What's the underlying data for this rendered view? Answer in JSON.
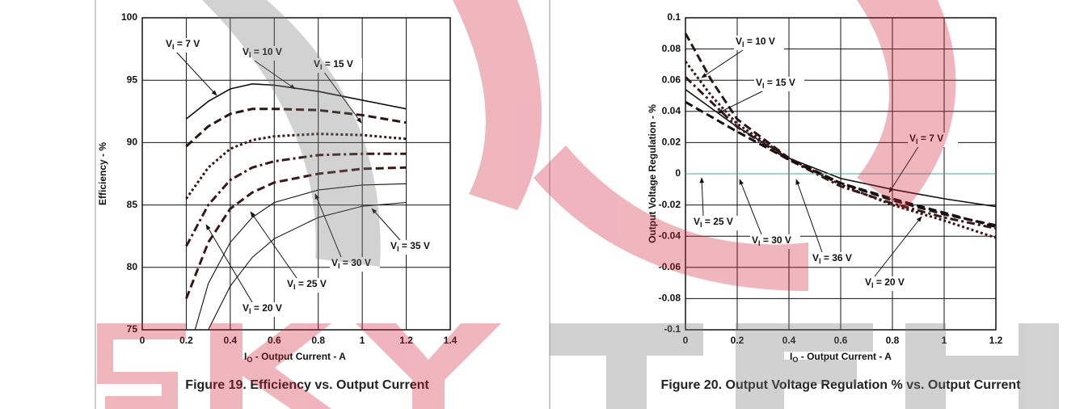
{
  "chart_data": [
    {
      "type": "line",
      "caption": "Figure 19. Efficiency vs. Output Current",
      "xlabel": "IO - Output Current - A",
      "ylabel": "Efficiency - %",
      "xlim": [
        0,
        1.4
      ],
      "xticks": [
        0,
        0.2,
        0.4,
        0.6,
        0.8,
        1,
        1.2,
        1.4
      ],
      "ylim": [
        75,
        100
      ],
      "yticks": [
        75,
        80,
        85,
        90,
        95,
        100
      ],
      "grid": true,
      "series": [
        {
          "name": "VI = 7 V",
          "color": "#111111",
          "style": "solid",
          "x": [
            0.2,
            0.3,
            0.4,
            0.5,
            0.6,
            0.8,
            1.0,
            1.2
          ],
          "values": [
            91.9,
            93.3,
            94.3,
            94.7,
            94.6,
            94.1,
            93.4,
            92.7
          ]
        },
        {
          "name": "VI = 10 V",
          "color": "#2a1414",
          "style": "dashed",
          "x": [
            0.2,
            0.3,
            0.4,
            0.5,
            0.6,
            0.8,
            1.0,
            1.2
          ],
          "values": [
            89.7,
            91.3,
            92.3,
            92.7,
            92.7,
            92.6,
            92.2,
            91.6
          ]
        },
        {
          "name": "VI = 15 V",
          "color": "#3a1818",
          "style": "dotted",
          "x": [
            0.2,
            0.3,
            0.4,
            0.5,
            0.6,
            0.8,
            1.0,
            1.2
          ],
          "values": [
            85.5,
            88.0,
            89.5,
            90.2,
            90.5,
            90.7,
            90.6,
            90.3
          ]
        },
        {
          "name": "VI = 20 V",
          "color": "#3a1818",
          "style": "dashdot",
          "x": [
            0.2,
            0.3,
            0.4,
            0.5,
            0.6,
            0.8,
            1.0,
            1.2
          ],
          "values": [
            81.7,
            85.0,
            87.0,
            88.0,
            88.5,
            89.0,
            89.1,
            89.1
          ]
        },
        {
          "name": "VI = 25 V",
          "color": "#3a1818",
          "style": "dashed",
          "x": [
            0.2,
            0.3,
            0.4,
            0.5,
            0.6,
            0.8,
            1.0,
            1.2
          ],
          "values": [
            77.5,
            82.0,
            84.7,
            86.0,
            86.8,
            87.5,
            87.9,
            88.0
          ]
        },
        {
          "name": "VI = 30 V",
          "color": "#111111",
          "style": "thin",
          "x": [
            0.24,
            0.3,
            0.4,
            0.5,
            0.6,
            0.8,
            1.0,
            1.2
          ],
          "values": [
            75.0,
            78.7,
            82.0,
            84.0,
            85.2,
            86.2,
            86.6,
            86.7
          ]
        },
        {
          "name": "VI = 35 V",
          "color": "#111111",
          "style": "thin",
          "x": [
            0.3,
            0.4,
            0.5,
            0.6,
            0.8,
            1.0,
            1.2
          ],
          "values": [
            75.0,
            78.5,
            80.8,
            82.3,
            84.0,
            84.9,
            85.2
          ]
        }
      ]
    },
    {
      "type": "line",
      "caption": "Figure 20. Output Voltage Regulation % vs. Output Current",
      "xlabel": "IO - Output Current - A",
      "ylabel": "Output Voltage Regulation - %",
      "xlim": [
        0,
        1.2
      ],
      "xticks": [
        0,
        0.2,
        0.4,
        0.6,
        0.8,
        1,
        1.2
      ],
      "ylim": [
        -0.1,
        0.1
      ],
      "yticks": [
        -0.1,
        -0.08,
        -0.06,
        -0.04,
        -0.02,
        0,
        0.02,
        0.04,
        0.06,
        0.08,
        0.1
      ],
      "grid": true,
      "series": [
        {
          "name": "VI = 7 V",
          "color": "#111111",
          "style": "solid",
          "x": [
            0,
            0.2,
            0.4,
            0.6,
            0.8,
            1.0,
            1.2
          ],
          "values": [
            0.054,
            0.03,
            0.01,
            -0.003,
            -0.01,
            -0.016,
            -0.021
          ]
        },
        {
          "name": "VI = 10 V",
          "color": "#2a1414",
          "style": "dashed",
          "x": [
            0,
            0.1,
            0.2,
            0.4,
            0.6,
            0.8,
            1.0,
            1.2
          ],
          "values": [
            0.09,
            0.06,
            0.035,
            0.01,
            -0.006,
            -0.017,
            -0.026,
            -0.033
          ]
        },
        {
          "name": "VI = 15 V",
          "color": "#3a1818",
          "style": "dotted",
          "x": [
            0,
            0.1,
            0.2,
            0.4,
            0.6,
            0.8,
            1.0,
            1.2
          ],
          "values": [
            0.072,
            0.05,
            0.032,
            0.01,
            -0.007,
            -0.02,
            -0.03,
            -0.041
          ]
        },
        {
          "name": "VI = 20 V",
          "color": "#3a1818",
          "style": "dashdot",
          "x": [
            0,
            0.2,
            0.4,
            0.6,
            0.8,
            1.0,
            1.2
          ],
          "values": [
            0.062,
            0.03,
            0.009,
            -0.008,
            -0.019,
            -0.028,
            -0.035
          ]
        },
        {
          "name": "VI = 25 V",
          "color": "#d03030",
          "style": "thin",
          "x": [
            0,
            1.2
          ],
          "values": [
            0,
            0
          ]
        },
        {
          "name": "VI = 30 V",
          "color": "#4aa0a0",
          "style": "thin",
          "x": [
            0,
            1.2
          ],
          "values": [
            0,
            0
          ]
        },
        {
          "name": "VI = 36 V",
          "color": "#111111",
          "style": "dashed",
          "x": [
            0,
            0.2,
            0.4,
            0.6,
            0.8,
            1.0,
            1.2
          ],
          "values": [
            0.046,
            0.027,
            0.009,
            -0.006,
            -0.016,
            -0.025,
            -0.034
          ]
        }
      ]
    }
  ]
}
